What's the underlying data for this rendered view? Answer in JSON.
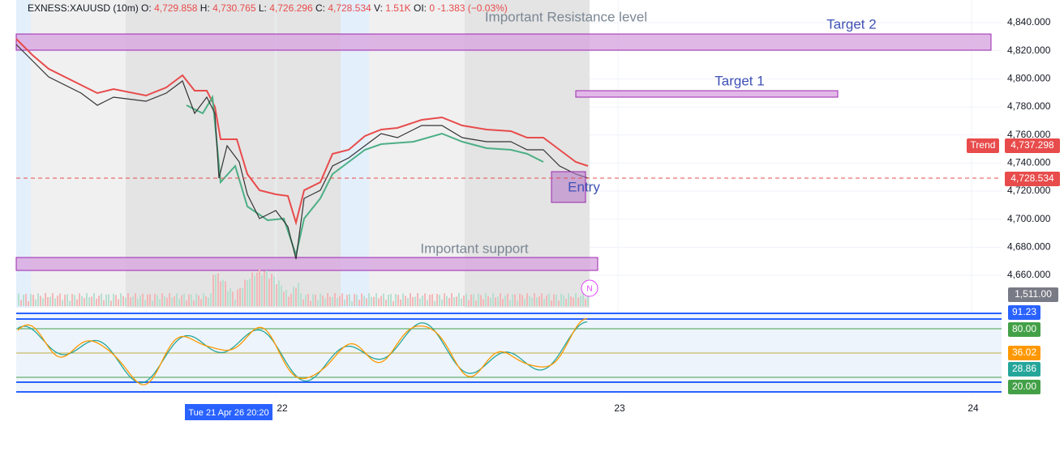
{
  "header": {
    "symbol": "EXNESS:XAUUSD (10m)",
    "fields": [
      {
        "label": "O:",
        "value": "4,729.858"
      },
      {
        "label": "H:",
        "value": "4,730.765"
      },
      {
        "label": "L:",
        "value": "4,726.296"
      },
      {
        "label": "C:",
        "value": "4,728.534"
      },
      {
        "label": "V:",
        "value": "1.51K"
      },
      {
        "label": "OI:",
        "value": "0"
      }
    ],
    "change": "-1.383",
    "change_pct": "(−0.03%)"
  },
  "annotations": {
    "resistance": "Important Resistance level",
    "target2": "Target 2",
    "target1": "Target 1",
    "entry": "Entry",
    "support": "Important support"
  },
  "price_axis": [
    "4,840.000",
    "4,820.000",
    "4,800.000",
    "4,780.000",
    "4,760.000",
    "4,740.000",
    "4,720.000",
    "4,700.000",
    "4,680.000",
    "4,660.000"
  ],
  "price_tags": {
    "trend_label": "Trend",
    "trend": "4,737.298",
    "last": "4,728.534",
    "volume": "1,511.00"
  },
  "oscillator_tags": [
    "91.23",
    "80.00",
    "36.02",
    "28.86",
    "20.00"
  ],
  "time_axis": [
    "22",
    "23",
    "24"
  ],
  "cursor_time": "Tue 21 Apr 26 20:20",
  "marker": "N"
}
